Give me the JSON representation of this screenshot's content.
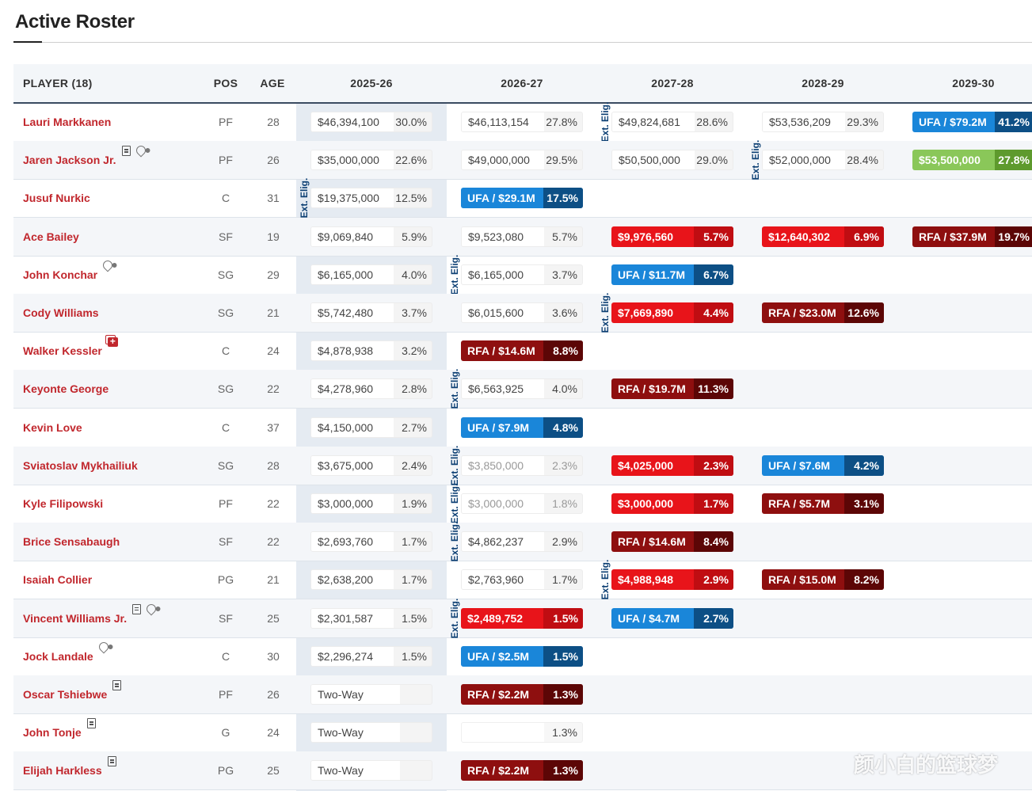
{
  "title": "Active Roster",
  "columns": {
    "player": "PLAYER (18)",
    "pos": "POS",
    "age": "AGE",
    "seasons": [
      "2025-26",
      "2026-27",
      "2027-28",
      "2028-29",
      "2029-30"
    ]
  },
  "ext_label": "Ext. Elig.",
  "watermark": "颜小白的篮球梦",
  "players": [
    {
      "name": "Lauri Markkanen",
      "pos": "PF",
      "age": "28",
      "icons": [],
      "cells": [
        {
          "style": "grey",
          "amount": "$46,394,100",
          "pct": "30.0%"
        },
        {
          "style": "grey",
          "amount": "$46,113,154",
          "pct": "27.8%"
        },
        {
          "style": "grey",
          "amount": "$49,824,681",
          "pct": "28.6%"
        },
        {
          "style": "grey",
          "amount": "$53,536,209",
          "pct": "29.3%"
        },
        {
          "style": "ufa",
          "amount": "UFA / $79.2M",
          "pct": "41.2%"
        }
      ],
      "ext": [
        2
      ]
    },
    {
      "name": "Jaren Jackson Jr.",
      "pos": "PF",
      "age": "26",
      "icons": [
        "doc-icon",
        "note-icon"
      ],
      "cells": [
        {
          "style": "grey",
          "amount": "$35,000,000",
          "pct": "22.6%"
        },
        {
          "style": "grey",
          "amount": "$49,000,000",
          "pct": "29.5%"
        },
        {
          "style": "grey",
          "amount": "$50,500,000",
          "pct": "29.0%"
        },
        {
          "style": "grey",
          "amount": "$52,000,000",
          "pct": "28.4%"
        },
        {
          "style": "green",
          "amount": "$53,500,000",
          "pct": "27.8%"
        }
      ],
      "ext": [
        3
      ]
    },
    {
      "name": "Jusuf Nurkic",
      "pos": "C",
      "age": "31",
      "icons": [],
      "cells": [
        {
          "style": "grey",
          "amount": "$19,375,000",
          "pct": "12.5%"
        },
        {
          "style": "ufa",
          "amount": "UFA / $29.1M",
          "pct": "17.5%"
        },
        null,
        null,
        null
      ],
      "ext": [
        0
      ]
    },
    {
      "name": "Ace Bailey",
      "pos": "SF",
      "age": "19",
      "icons": [],
      "cells": [
        {
          "style": "grey",
          "amount": "$9,069,840",
          "pct": "5.9%"
        },
        {
          "style": "grey",
          "amount": "$9,523,080",
          "pct": "5.7%"
        },
        {
          "style": "redpill",
          "amount": "$9,976,560",
          "pct": "5.7%"
        },
        {
          "style": "redpill",
          "amount": "$12,640,302",
          "pct": "6.9%"
        },
        {
          "style": "rfa",
          "amount": "RFA / $37.9M",
          "pct": "19.7%"
        }
      ],
      "ext": []
    },
    {
      "name": "John Konchar",
      "pos": "SG",
      "age": "29",
      "icons": [
        "note-icon"
      ],
      "cells": [
        {
          "style": "grey",
          "amount": "$6,165,000",
          "pct": "4.0%"
        },
        {
          "style": "grey",
          "amount": "$6,165,000",
          "pct": "3.7%"
        },
        {
          "style": "ufa",
          "amount": "UFA / $11.7M",
          "pct": "6.7%"
        },
        null,
        null
      ],
      "ext": [
        1
      ]
    },
    {
      "name": "Cody Williams",
      "pos": "SG",
      "age": "21",
      "icons": [],
      "cells": [
        {
          "style": "grey",
          "amount": "$5,742,480",
          "pct": "3.7%"
        },
        {
          "style": "grey",
          "amount": "$6,015,600",
          "pct": "3.6%"
        },
        {
          "style": "redpill",
          "amount": "$7,669,890",
          "pct": "4.4%"
        },
        {
          "style": "rfa",
          "amount": "RFA / $23.0M",
          "pct": "12.6%"
        },
        null
      ],
      "ext": [
        2
      ]
    },
    {
      "name": "Walker Kessler",
      "pos": "C",
      "age": "24",
      "icons": [
        "injury-icon"
      ],
      "cells": [
        {
          "style": "grey",
          "amount": "$4,878,938",
          "pct": "3.2%"
        },
        {
          "style": "rfa",
          "amount": "RFA / $14.6M",
          "pct": "8.8%"
        },
        null,
        null,
        null
      ],
      "ext": []
    },
    {
      "name": "Keyonte George",
      "pos": "SG",
      "age": "22",
      "icons": [],
      "cells": [
        {
          "style": "grey",
          "amount": "$4,278,960",
          "pct": "2.8%"
        },
        {
          "style": "grey",
          "amount": "$6,563,925",
          "pct": "4.0%"
        },
        {
          "style": "rfa",
          "amount": "RFA / $19.7M",
          "pct": "11.3%"
        },
        null,
        null
      ],
      "ext": [
        1
      ]
    },
    {
      "name": "Kevin Love",
      "pos": "C",
      "age": "37",
      "icons": [],
      "cells": [
        {
          "style": "grey",
          "amount": "$4,150,000",
          "pct": "2.7%"
        },
        {
          "style": "ufa",
          "amount": "UFA / $7.9M",
          "pct": "4.8%"
        },
        null,
        null,
        null
      ],
      "ext": []
    },
    {
      "name": "Sviatoslav Mykhailiuk",
      "pos": "SG",
      "age": "28",
      "icons": [],
      "cells": [
        {
          "style": "grey",
          "amount": "$3,675,000",
          "pct": "2.4%"
        },
        {
          "style": "faded",
          "amount": "$3,850,000",
          "pct": "2.3%"
        },
        {
          "style": "redpill",
          "amount": "$4,025,000",
          "pct": "2.3%"
        },
        {
          "style": "ufa",
          "amount": "UFA / $7.6M",
          "pct": "4.2%"
        },
        null
      ],
      "ext": [
        1
      ]
    },
    {
      "name": "Kyle Filipowski",
      "pos": "PF",
      "age": "22",
      "icons": [],
      "cells": [
        {
          "style": "grey",
          "amount": "$3,000,000",
          "pct": "1.9%"
        },
        {
          "style": "faded",
          "amount": "$3,000,000",
          "pct": "1.8%"
        },
        {
          "style": "redpill",
          "amount": "$3,000,000",
          "pct": "1.7%"
        },
        {
          "style": "rfa",
          "amount": "RFA / $5.7M",
          "pct": "3.1%"
        },
        null
      ],
      "ext": [
        1
      ]
    },
    {
      "name": "Brice Sensabaugh",
      "pos": "SF",
      "age": "22",
      "icons": [],
      "cells": [
        {
          "style": "grey",
          "amount": "$2,693,760",
          "pct": "1.7%"
        },
        {
          "style": "grey",
          "amount": "$4,862,237",
          "pct": "2.9%"
        },
        {
          "style": "rfa",
          "amount": "RFA / $14.6M",
          "pct": "8.4%"
        },
        null,
        null
      ],
      "ext": [
        1
      ]
    },
    {
      "name": "Isaiah Collier",
      "pos": "PG",
      "age": "21",
      "icons": [],
      "cells": [
        {
          "style": "grey",
          "amount": "$2,638,200",
          "pct": "1.7%"
        },
        {
          "style": "grey",
          "amount": "$2,763,960",
          "pct": "1.7%"
        },
        {
          "style": "redpill",
          "amount": "$4,988,948",
          "pct": "2.9%"
        },
        {
          "style": "rfa",
          "amount": "RFA / $15.0M",
          "pct": "8.2%"
        },
        null
      ],
      "ext": [
        2
      ]
    },
    {
      "name": "Vincent Williams Jr.",
      "pos": "SF",
      "age": "25",
      "icons": [
        "doc-icon",
        "note-icon"
      ],
      "cells": [
        {
          "style": "grey",
          "amount": "$2,301,587",
          "pct": "1.5%"
        },
        {
          "style": "redpill",
          "amount": "$2,489,752",
          "pct": "1.5%"
        },
        {
          "style": "ufa",
          "amount": "UFA / $4.7M",
          "pct": "2.7%"
        },
        null,
        null
      ],
      "ext": [
        1
      ]
    },
    {
      "name": "Jock Landale",
      "pos": "C",
      "age": "30",
      "icons": [
        "note-icon"
      ],
      "cells": [
        {
          "style": "grey",
          "amount": "$2,296,274",
          "pct": "1.5%"
        },
        {
          "style": "ufa",
          "amount": "UFA / $2.5M",
          "pct": "1.5%"
        },
        null,
        null,
        null
      ],
      "ext": []
    },
    {
      "name": "Oscar Tshiebwe",
      "pos": "PF",
      "age": "26",
      "icons": [
        "doc-icon"
      ],
      "cells": [
        {
          "style": "twoway",
          "amount": "Two-Way",
          "pct": ""
        },
        {
          "style": "rfa",
          "amount": "RFA / $2.2M",
          "pct": "1.3%"
        },
        null,
        null,
        null
      ],
      "ext": []
    },
    {
      "name": "John Tonje",
      "pos": "G",
      "age": "24",
      "icons": [
        "doc-icon"
      ],
      "cells": [
        {
          "style": "twoway",
          "amount": "Two-Way",
          "pct": ""
        },
        {
          "style": "hidden-amt",
          "amount": "",
          "pct": "1.3%"
        },
        null,
        null,
        null
      ],
      "ext": []
    },
    {
      "name": "Elijah Harkless",
      "pos": "PG",
      "age": "25",
      "icons": [
        "doc-icon"
      ],
      "cells": [
        {
          "style": "twoway",
          "amount": "Two-Way",
          "pct": ""
        },
        {
          "style": "rfa",
          "amount": "RFA / $2.2M",
          "pct": "1.3%"
        },
        null,
        null,
        null
      ],
      "ext": []
    }
  ]
}
